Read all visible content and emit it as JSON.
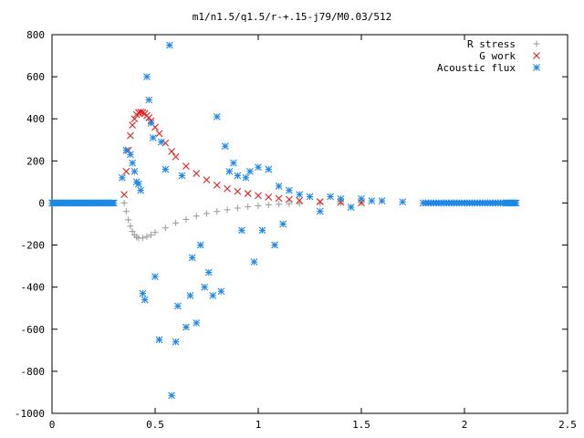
{
  "chart_data": {
    "type": "scatter",
    "title": "m1/n1.5/q1.5/r-+.15-j79/M0.03/512",
    "xlabel": "",
    "ylabel": "",
    "xlim": [
      0,
      2.5
    ],
    "ylim": [
      -1000,
      800
    ],
    "x_ticks": [
      0,
      0.5,
      1,
      1.5,
      2,
      2.5
    ],
    "x_tick_labels": [
      "0",
      "0.5",
      "1",
      "1.5",
      "2",
      "2.5"
    ],
    "y_ticks": [
      800,
      600,
      400,
      200,
      0,
      -200,
      -400,
      -600,
      -800,
      -1000
    ],
    "y_tick_labels": [
      "800",
      "600",
      "400",
      "200",
      "0",
      "-200",
      "-400",
      "-600",
      "-800",
      "-1000"
    ],
    "grid": false,
    "legend_position": "top-right",
    "series": [
      {
        "name": "R stress",
        "marker": "plus",
        "color": "#a0a0a0",
        "x": [
          0.35,
          0.36,
          0.37,
          0.38,
          0.39,
          0.4,
          0.41,
          0.42,
          0.44,
          0.46,
          0.48,
          0.5,
          0.55,
          0.6,
          0.65,
          0.7,
          0.75,
          0.8,
          0.85,
          0.9,
          0.95,
          1.0,
          1.05,
          1.1,
          1.15,
          1.2,
          1.3,
          1.4,
          1.5
        ],
        "y": [
          0,
          -40,
          -80,
          -110,
          -135,
          -152,
          -162,
          -167,
          -166,
          -160,
          -152,
          -140,
          -118,
          -95,
          -78,
          -62,
          -50,
          -40,
          -32,
          -24,
          -18,
          -13,
          -9,
          -6,
          -4,
          -3,
          -2,
          -1,
          0
        ]
      },
      {
        "name": "G work",
        "marker": "cross",
        "color": "#e0201b",
        "x": [
          0.35,
          0.36,
          0.37,
          0.38,
          0.39,
          0.4,
          0.41,
          0.42,
          0.43,
          0.44,
          0.45,
          0.46,
          0.47,
          0.48,
          0.5,
          0.52,
          0.55,
          0.58,
          0.6,
          0.65,
          0.7,
          0.75,
          0.8,
          0.85,
          0.9,
          0.95,
          1.0,
          1.05,
          1.1,
          1.15,
          1.2,
          1.3,
          1.4,
          1.5
        ],
        "y": [
          40,
          150,
          250,
          320,
          370,
          400,
          420,
          430,
          432,
          430,
          425,
          415,
          405,
          390,
          360,
          330,
          285,
          245,
          220,
          175,
          140,
          110,
          85,
          68,
          55,
          45,
          35,
          28,
          22,
          17,
          12,
          6,
          3,
          1
        ]
      },
      {
        "name": "Acoustic flux",
        "marker": "star",
        "color": "#1e88e5",
        "x": [
          0.0,
          0.05,
          0.1,
          0.15,
          0.2,
          0.25,
          0.3,
          0.34,
          0.36,
          0.38,
          0.39,
          0.4,
          0.41,
          0.42,
          0.43,
          0.44,
          0.45,
          0.46,
          0.47,
          0.48,
          0.49,
          0.5,
          0.52,
          0.53,
          0.55,
          0.57,
          0.58,
          0.6,
          0.61,
          0.63,
          0.65,
          0.67,
          0.68,
          0.7,
          0.72,
          0.74,
          0.76,
          0.78,
          0.8,
          0.82,
          0.84,
          0.86,
          0.88,
          0.9,
          0.92,
          0.94,
          0.96,
          0.98,
          1.0,
          1.02,
          1.05,
          1.08,
          1.1,
          1.12,
          1.15,
          1.2,
          1.25,
          1.3,
          1.35,
          1.4,
          1.45,
          1.5,
          1.55,
          1.6,
          1.7,
          1.8,
          1.9,
          2.0,
          2.1,
          2.2,
          2.25
        ],
        "y": [
          0,
          0,
          0,
          0,
          0,
          0,
          0,
          120,
          250,
          230,
          190,
          150,
          100,
          90,
          60,
          -430,
          -460,
          600,
          490,
          380,
          310,
          -350,
          -650,
          290,
          160,
          750,
          -915,
          -660,
          -490,
          130,
          -590,
          -440,
          -260,
          -570,
          -200,
          -400,
          -330,
          -440,
          410,
          -420,
          270,
          150,
          190,
          130,
          -130,
          120,
          150,
          -280,
          170,
          -130,
          160,
          -200,
          80,
          -100,
          60,
          40,
          30,
          -40,
          30,
          20,
          -20,
          20,
          10,
          10,
          5,
          0,
          0,
          0,
          0,
          0,
          0
        ]
      }
    ]
  }
}
